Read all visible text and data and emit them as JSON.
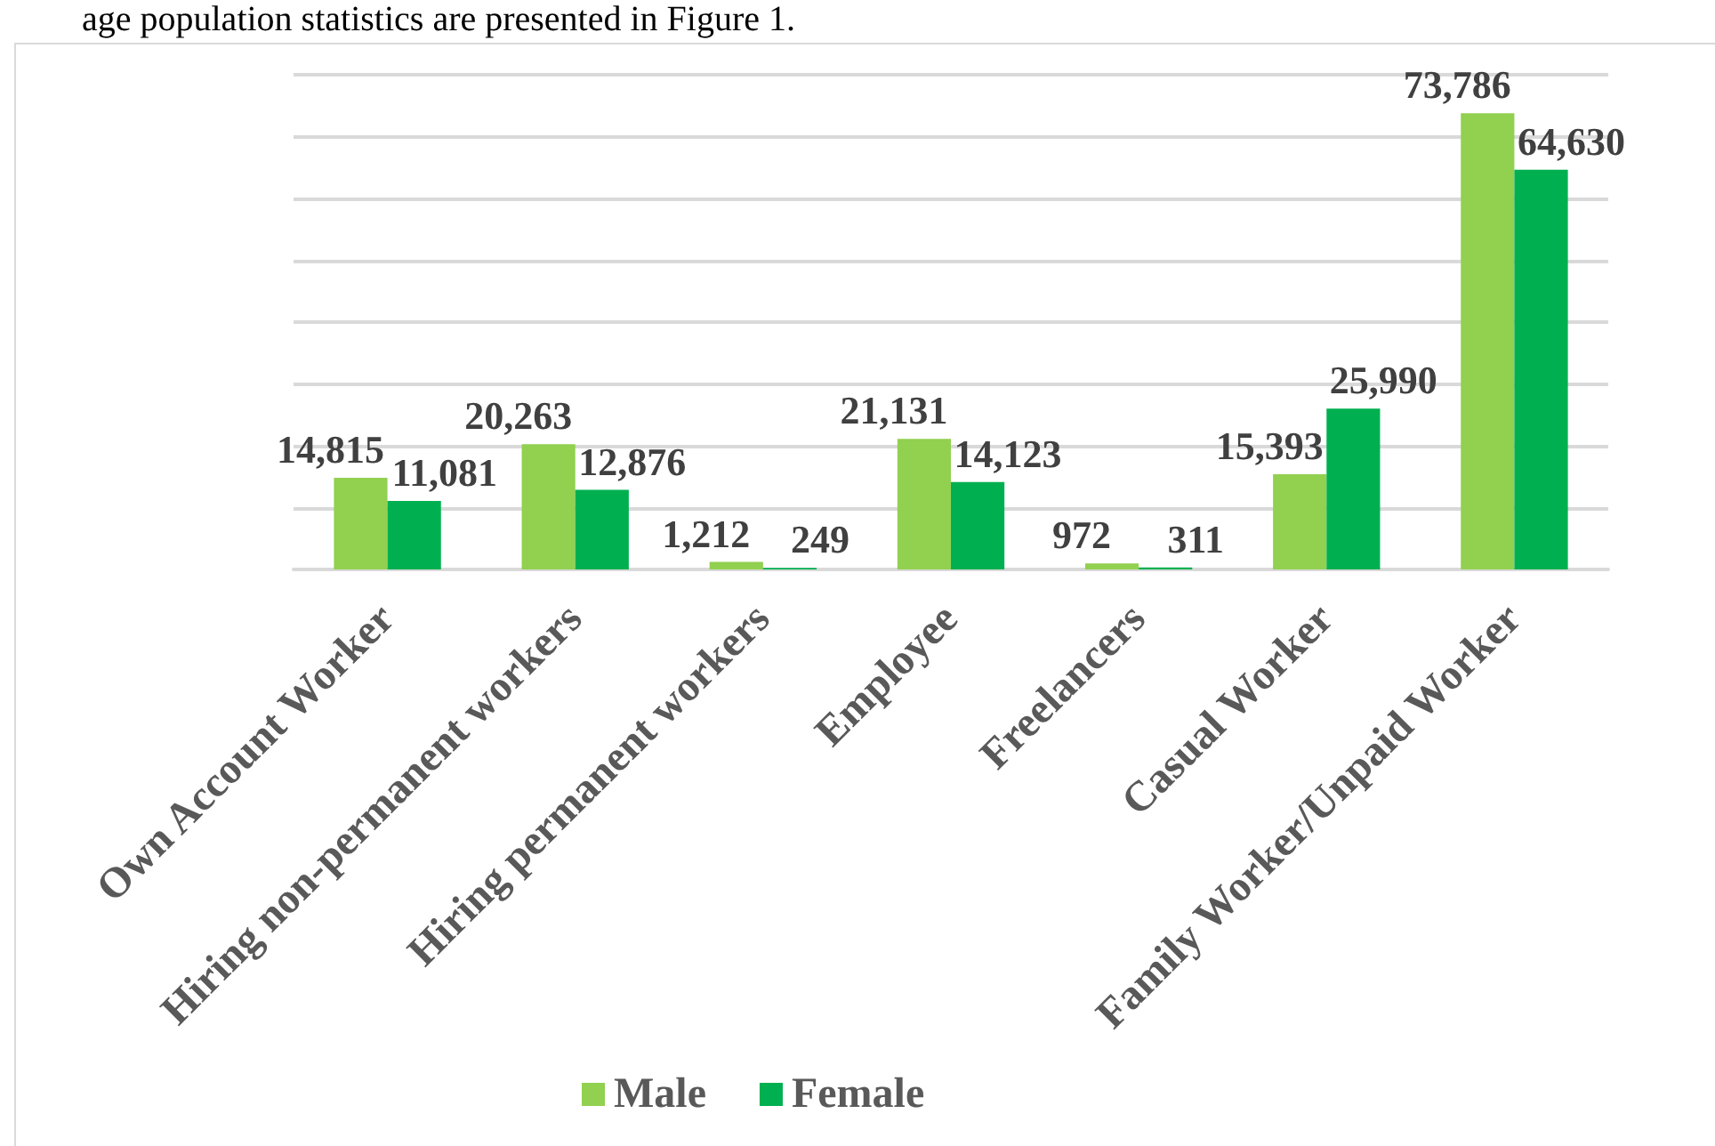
{
  "chart_data": {
    "type": "bar",
    "annotations": [
      "age population statistics are presented in Figure 1."
    ],
    "categories": [
      "Own Account Worker",
      "Hiring non-permanent workers",
      "Hiring permanent workers",
      "Employee",
      "Freelancers",
      "Casual Worker",
      "Family Worker/Unpaid Worker"
    ],
    "series": [
      {
        "name": "Male",
        "color": "#92d050",
        "values": [
          14815,
          20263,
          1212,
          21131,
          972,
          15393,
          73786
        ],
        "value_labels": [
          "14,815",
          "20,263",
          "1,212",
          "21,131",
          "972",
          "15,393",
          "73,786"
        ]
      },
      {
        "name": "Female",
        "color": "#00b050",
        "values": [
          11081,
          12876,
          249,
          14123,
          311,
          25990,
          64630
        ],
        "value_labels": [
          "11,081",
          "12,876",
          "249",
          "14,123",
          "311",
          "25,990",
          "64,630"
        ]
      }
    ],
    "ylim": [
      0,
      80000
    ],
    "yticks": [
      {
        "value": 0,
        "label": null
      },
      {
        "value": 10000,
        "label": null
      },
      {
        "value": 20000,
        "label": null
      },
      {
        "value": 30000,
        "label": null
      },
      {
        "value": 40000,
        "label": null
      },
      {
        "value": 50000,
        "label": null
      },
      {
        "value": 60000,
        "label": null
      },
      {
        "value": 70000,
        "label": null
      },
      {
        "value": 80000,
        "label": null
      }
    ],
    "tick_labels": "x",
    "grid": "y",
    "legend": "bottom"
  }
}
